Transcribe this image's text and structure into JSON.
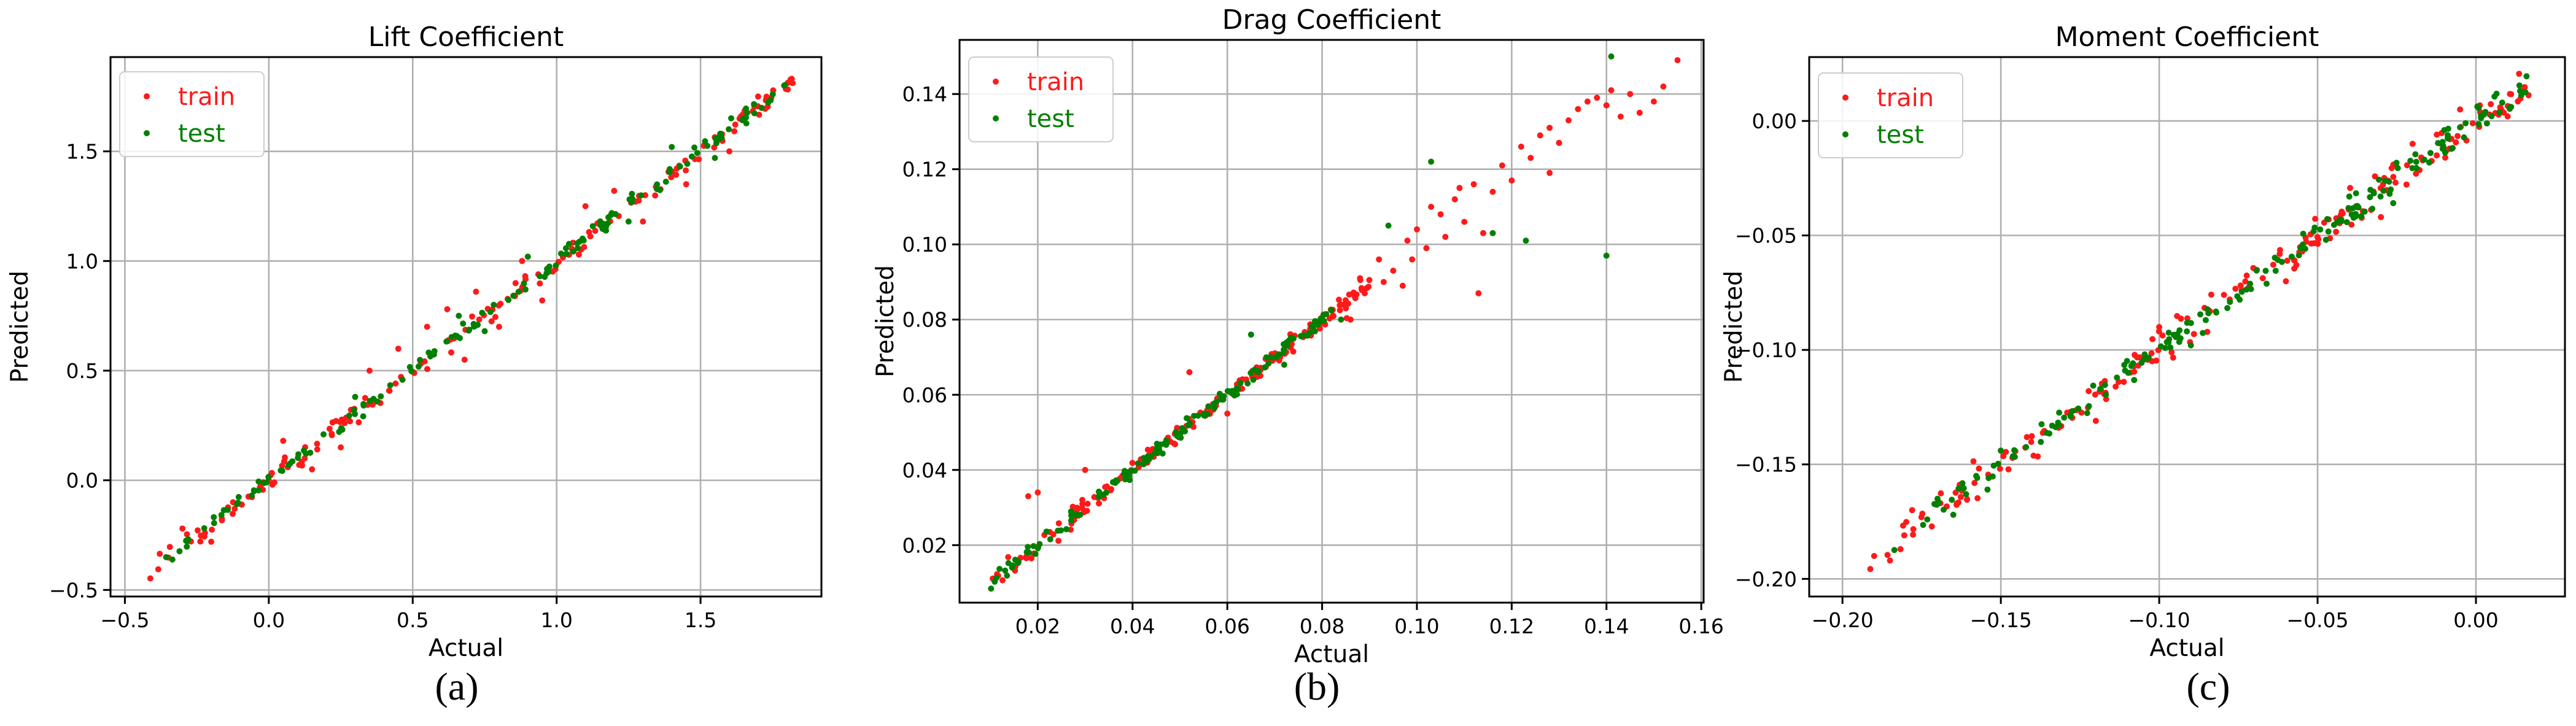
{
  "chart_data": [
    {
      "type": "scatter",
      "title": "Lift Coefficient",
      "xlabel": "Actual",
      "ylabel": "Predicted",
      "xlim": [
        -0.55,
        1.92
      ],
      "ylim": [
        -0.53,
        1.93
      ],
      "xticks": [
        -0.5,
        0.0,
        0.5,
        1.0,
        1.5
      ],
      "yticks": [
        -0.5,
        0.0,
        0.5,
        1.0,
        1.5
      ],
      "tick_labels_x": [
        "−0.5",
        "0.0",
        "0.5",
        "1.0",
        "1.5"
      ],
      "tick_labels_y": [
        "−0.5",
        "0.0",
        "0.5",
        "1.0",
        "1.5"
      ],
      "grid": true,
      "legend": "top-left",
      "caption": "(a)",
      "series": [
        {
          "name": "train",
          "color": "#ff1a1a",
          "x_range": [
            -0.42,
            1.82
          ],
          "n": 170,
          "noise": 0.022,
          "outliers": [
            [
              0.62,
              0.78
            ],
            [
              0.72,
              0.86
            ],
            [
              0.55,
              0.7
            ],
            [
              0.8,
              0.7
            ],
            [
              0.95,
              0.82
            ],
            [
              1.1,
              1.25
            ],
            [
              1.3,
              1.18
            ],
            [
              0.45,
              0.6
            ],
            [
              0.25,
              0.15
            ],
            [
              0.05,
              0.18
            ],
            [
              -0.2,
              -0.28
            ],
            [
              1.6,
              1.5
            ],
            [
              1.7,
              1.75
            ],
            [
              0.68,
              0.55
            ],
            [
              0.88,
              1.0
            ],
            [
              0.35,
              0.5
            ],
            [
              1.45,
              1.35
            ],
            [
              1.2,
              1.32
            ],
            [
              0.15,
              0.05
            ],
            [
              -0.3,
              -0.22
            ]
          ]
        },
        {
          "name": "test",
          "color": "#008000",
          "x_range": [
            -0.4,
            1.8
          ],
          "n": 150,
          "noise": 0.016,
          "outliers": [
            [
              0.66,
              0.75
            ],
            [
              1.4,
              1.52
            ],
            [
              0.9,
              1.02
            ],
            [
              0.75,
              0.68
            ],
            [
              1.25,
              1.18
            ],
            [
              1.55,
              1.47
            ],
            [
              0.3,
              0.38
            ]
          ]
        }
      ]
    },
    {
      "type": "scatter",
      "title": "Drag Coefficient",
      "xlabel": "Actual",
      "ylabel": "Predicted",
      "xlim": [
        0.0035,
        0.1605
      ],
      "ylim": [
        0.0047,
        0.1544
      ],
      "xticks": [
        0.02,
        0.04,
        0.06,
        0.08,
        0.1,
        0.12,
        0.14,
        0.16
      ],
      "yticks": [
        0.02,
        0.04,
        0.06,
        0.08,
        0.1,
        0.12,
        0.14
      ],
      "tick_labels_x": [
        "0.02",
        "0.04",
        "0.06",
        "0.08",
        "0.10",
        "0.12",
        "0.14",
        "0.16"
      ],
      "tick_labels_y": [
        "0.02",
        "0.04",
        "0.06",
        "0.08",
        "0.10",
        "0.12",
        "0.14"
      ],
      "grid": true,
      "legend": "top-left",
      "caption": "(b)",
      "series": [
        {
          "name": "train",
          "color": "#ff1a1a",
          "x_range": [
            0.01,
            0.09
          ],
          "n": 170,
          "noise": 0.0012,
          "outliers": [
            [
              0.092,
              0.096
            ],
            [
              0.095,
              0.093
            ],
            [
              0.098,
              0.101
            ],
            [
              0.1,
              0.104
            ],
            [
              0.102,
              0.099
            ],
            [
              0.105,
              0.108
            ],
            [
              0.108,
              0.112
            ],
            [
              0.11,
              0.106
            ],
            [
              0.112,
              0.116
            ],
            [
              0.114,
              0.103
            ],
            [
              0.116,
              0.114
            ],
            [
              0.118,
              0.121
            ],
            [
              0.12,
              0.117
            ],
            [
              0.122,
              0.126
            ],
            [
              0.124,
              0.123
            ],
            [
              0.126,
              0.129
            ],
            [
              0.128,
              0.131
            ],
            [
              0.13,
              0.127
            ],
            [
              0.132,
              0.133
            ],
            [
              0.134,
              0.136
            ],
            [
              0.136,
              0.138
            ],
            [
              0.138,
              0.139
            ],
            [
              0.14,
              0.137
            ],
            [
              0.141,
              0.141
            ],
            [
              0.143,
              0.134
            ],
            [
              0.145,
              0.14
            ],
            [
              0.147,
              0.135
            ],
            [
              0.15,
              0.138
            ],
            [
              0.152,
              0.142
            ],
            [
              0.155,
              0.149
            ],
            [
              0.097,
              0.089
            ],
            [
              0.113,
              0.087
            ],
            [
              0.086,
              0.08
            ],
            [
              0.089,
              0.087
            ],
            [
              0.106,
              0.102
            ],
            [
              0.099,
              0.096
            ],
            [
              0.103,
              0.11
            ],
            [
              0.093,
              0.09
            ],
            [
              0.128,
              0.119
            ],
            [
              0.109,
              0.115
            ],
            [
              0.02,
              0.034
            ],
            [
              0.018,
              0.033
            ],
            [
              0.03,
              0.04
            ],
            [
              0.052,
              0.066
            ],
            [
              0.06,
              0.055
            ],
            [
              0.085,
              0.083
            ],
            [
              0.088,
              0.091
            ]
          ]
        },
        {
          "name": "test",
          "color": "#008000",
          "x_range": [
            0.01,
            0.082
          ],
          "n": 150,
          "noise": 0.001,
          "outliers": [
            [
              0.103,
              0.122
            ],
            [
              0.123,
              0.101
            ],
            [
              0.141,
              0.15
            ],
            [
              0.14,
              0.097
            ],
            [
              0.116,
              0.103
            ],
            [
              0.084,
              0.08
            ],
            [
              0.065,
              0.076
            ],
            [
              0.094,
              0.105
            ],
            [
              0.072,
              0.068
            ]
          ]
        }
      ]
    },
    {
      "type": "scatter",
      "title": "Moment Coefficient",
      "xlabel": "Actual",
      "ylabel": "Predicted",
      "xlim": [
        -0.2105,
        0.0281
      ],
      "ylim": [
        -0.2077,
        0.0279
      ],
      "xticks": [
        -0.2,
        -0.15,
        -0.1,
        -0.05,
        0.0
      ],
      "yticks": [
        -0.2,
        -0.15,
        -0.1,
        -0.05,
        0.0
      ],
      "tick_labels_x": [
        "−0.20",
        "−0.15",
        "−0.10",
        "−0.05",
        "0.00"
      ],
      "tick_labels_y": [
        "−0.20",
        "−0.15",
        "−0.10",
        "−0.05",
        "0.00"
      ],
      "grid": true,
      "legend": "top-left",
      "caption": "(c)",
      "series": [
        {
          "name": "train",
          "color": "#ff1a1a",
          "x_range": [
            -0.197,
            0.018
          ],
          "n": 190,
          "noise": 0.0038,
          "outliers": [
            [
              -0.19,
              -0.19
            ],
            [
              -0.185,
              -0.192
            ],
            [
              -0.178,
              -0.17
            ],
            [
              -0.1,
              -0.09
            ],
            [
              -0.06,
              -0.07
            ],
            [
              -0.02,
              -0.01
            ],
            [
              -0.005,
              0.005
            ],
            [
              0.01,
              0.002
            ],
            [
              -0.03,
              -0.042
            ],
            [
              -0.12,
              -0.131
            ]
          ]
        },
        {
          "name": "test",
          "color": "#008000",
          "x_range": [
            -0.185,
            0.016
          ],
          "n": 180,
          "noise": 0.003,
          "outliers": [
            [
              -0.165,
              -0.172
            ],
            [
              -0.15,
              -0.144
            ],
            [
              -0.09,
              -0.098
            ],
            [
              -0.04,
              -0.033
            ],
            [
              -0.01,
              -0.004
            ],
            [
              -0.17,
              -0.165
            ]
          ]
        }
      ]
    }
  ]
}
